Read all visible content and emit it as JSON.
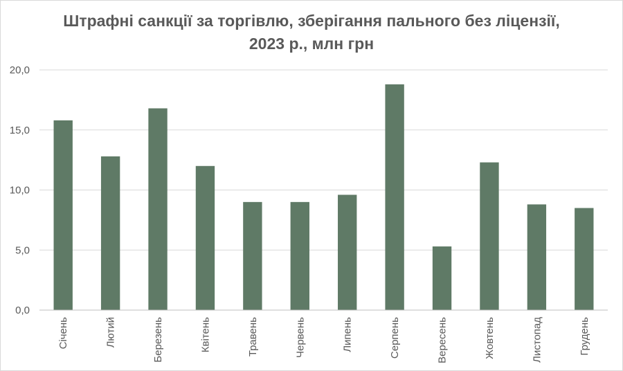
{
  "chart_data": {
    "type": "bar",
    "title_lines": [
      "Штрафні санкції за торгівлю, зберігання пального без ліцензії,",
      "2023 р., млн грн"
    ],
    "categories": [
      "Січень",
      "Лютий",
      "Березень",
      "Квітень",
      "Травень",
      "Червень",
      "Липень",
      "Серпень",
      "Вересень",
      "Жовтень",
      "Листопад",
      "Грудень"
    ],
    "values": [
      15.8,
      12.8,
      16.8,
      12.0,
      9.0,
      9.0,
      9.6,
      18.8,
      5.3,
      12.3,
      8.8,
      8.5
    ],
    "ylim": [
      0,
      20
    ],
    "yticks": [
      "0,0",
      "5,0",
      "10,0",
      "15,0",
      "20,0"
    ],
    "ytick_values": [
      0,
      5,
      10,
      15,
      20
    ],
    "xlabel": "",
    "ylabel": "",
    "grid": true,
    "legend": "none",
    "bar_color": "#5f7a66",
    "grid_color": "#d9d9d9",
    "axis_color": "#bfbfbf"
  }
}
